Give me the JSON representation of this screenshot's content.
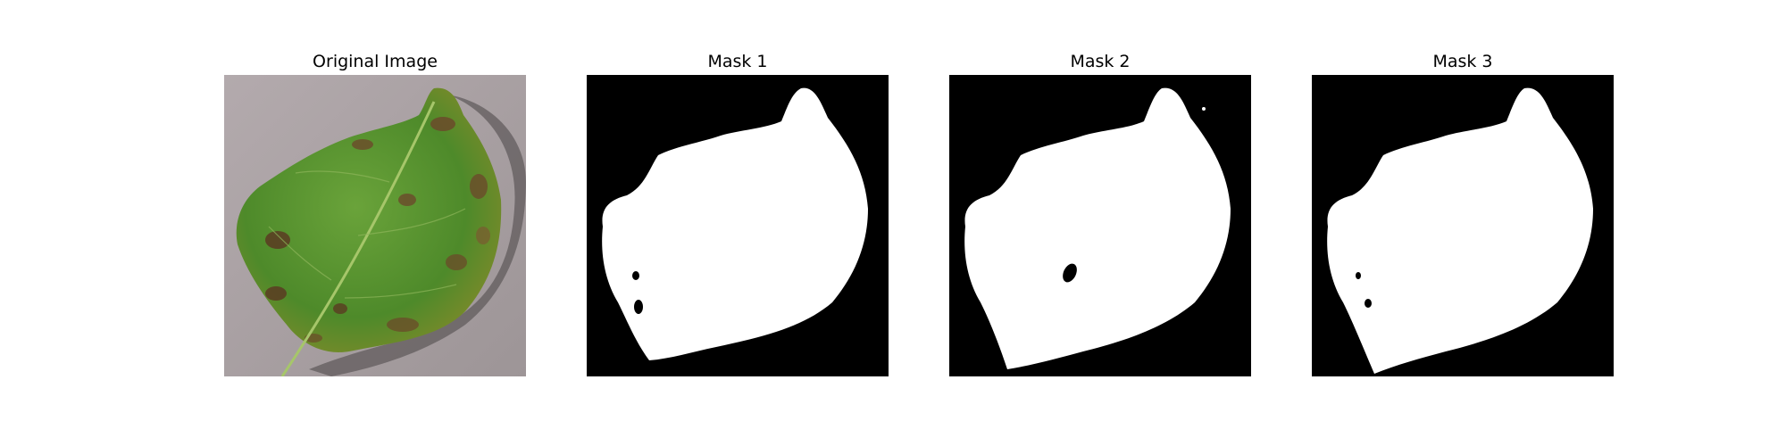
{
  "panels": [
    {
      "title": "Original Image"
    },
    {
      "title": "Mask 1"
    },
    {
      "title": "Mask 2"
    },
    {
      "title": "Mask 3"
    }
  ],
  "colors": {
    "background": "#ffffff",
    "mask_background": "#000000",
    "mask_foreground": "#ffffff",
    "leaf_green": "#5f9a2f",
    "lesion_brown": "#6b4a2a",
    "surface_gray": "#a8a0a2"
  }
}
